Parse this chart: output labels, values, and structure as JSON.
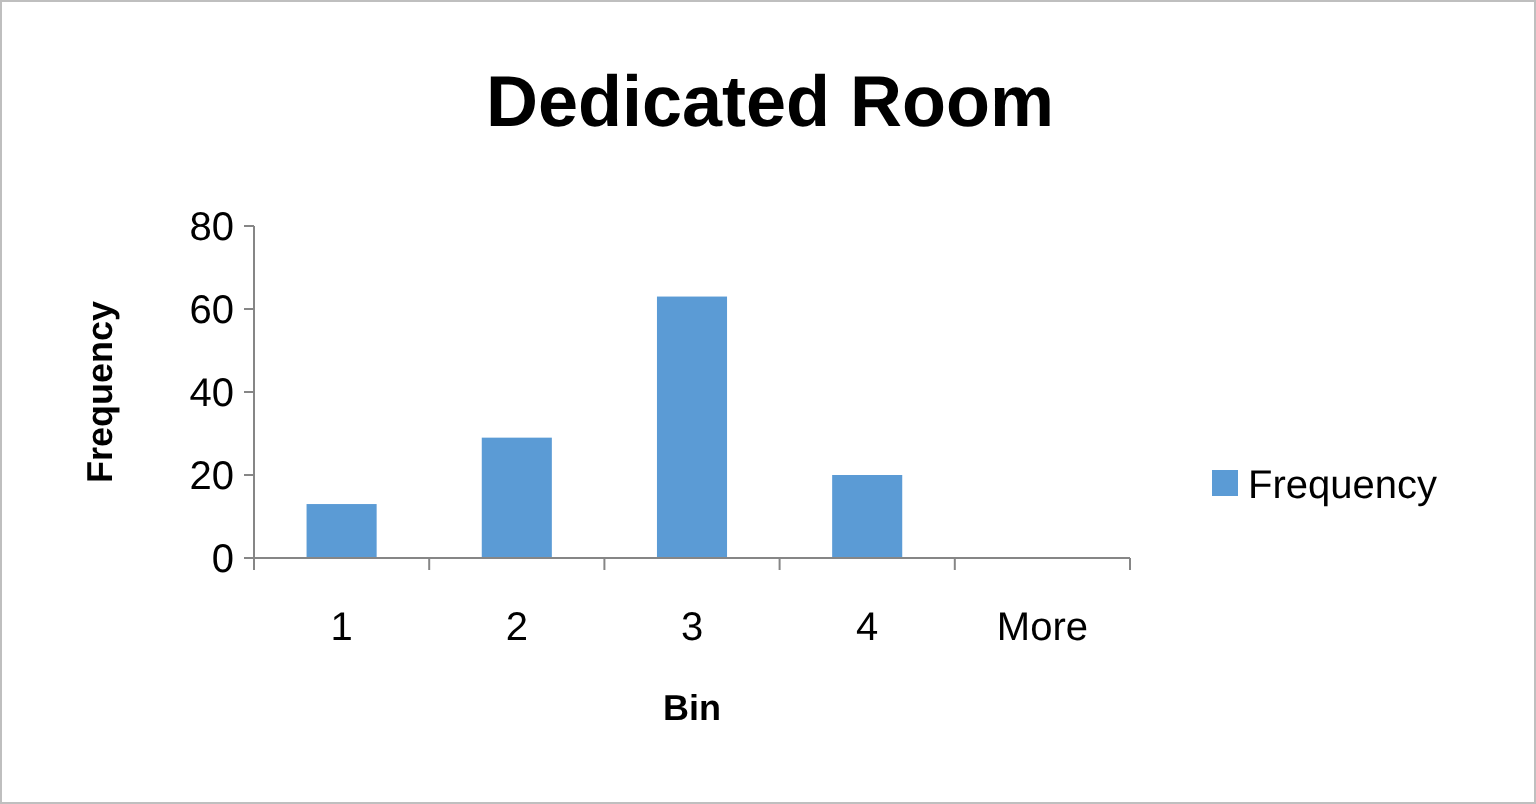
{
  "chart_data": {
    "type": "bar",
    "title": "Dedicated Room",
    "xlabel": "Bin",
    "ylabel": "Frequency",
    "categories": [
      "1",
      "2",
      "3",
      "4",
      "More"
    ],
    "series": [
      {
        "name": "Frequency",
        "color": "#5b9bd5",
        "values": [
          13,
          29,
          63,
          20,
          0
        ]
      }
    ],
    "ylim": [
      0,
      80
    ],
    "yticks": [
      0,
      20,
      40,
      60,
      80
    ],
    "grid": false,
    "legend": "right"
  }
}
